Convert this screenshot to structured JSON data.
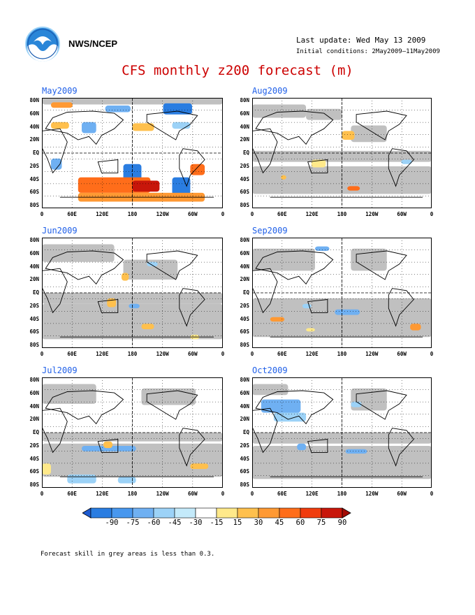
{
  "header": {
    "org": "NWS/NCEP",
    "last_update": "Last update: Wed May 13 2009",
    "initial_conditions": "Initial conditions: 2May2009–11May2009",
    "title": "CFS monthly z200 forecast (m)"
  },
  "logo_icon": "noaa-logo",
  "axes": {
    "lat_labels": [
      "80N",
      "60N",
      "40N",
      "20N",
      "EQ",
      "20S",
      "40S",
      "60S",
      "80S"
    ],
    "lon_labels": [
      "0",
      "60E",
      "120E",
      "180",
      "120W",
      "60W",
      "0"
    ]
  },
  "panels": [
    {
      "label": "May2009"
    },
    {
      "label": "Aug2009"
    },
    {
      "label": "Jun2009"
    },
    {
      "label": "Sep2009"
    },
    {
      "label": "Jul2009"
    },
    {
      "label": "Oct2009"
    }
  ],
  "colorbar": {
    "ticks": [
      "-90",
      "-75",
      "-60",
      "-45",
      "-30",
      "-15",
      "15",
      "30",
      "45",
      "60",
      "75",
      "90"
    ],
    "colors": [
      "#1d5bd1",
      "#2a7de1",
      "#4897ee",
      "#6fb0f2",
      "#9cd2f7",
      "#c4eafa",
      "#ffffff",
      "#ffe98a",
      "#ffc04d",
      "#ff9933",
      "#ff6d1a",
      "#f03c0e",
      "#c8160a",
      "#a30b05"
    ]
  },
  "footnote": "Forecast skill in grey areas is less than 0.3."
}
